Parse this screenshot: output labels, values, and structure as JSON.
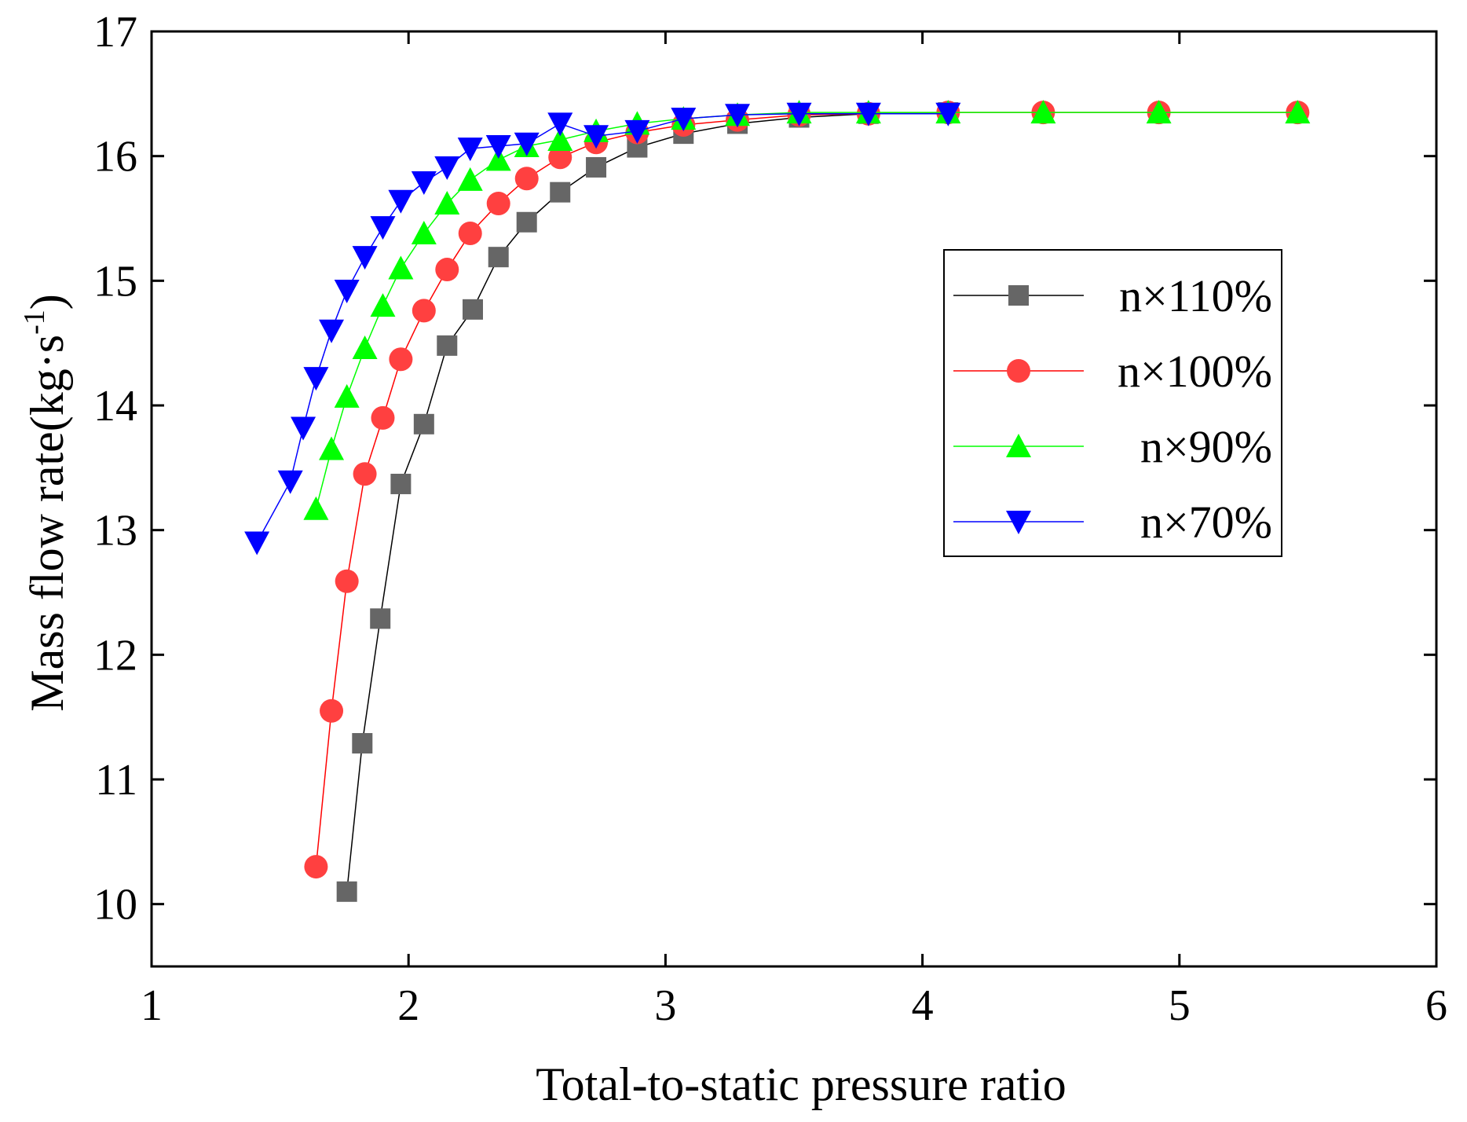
{
  "chart_data": {
    "type": "line",
    "title": "",
    "xlabel": "Total-to-static pressure ratio",
    "ylabel_main": "Mass flow rate(kg·s",
    "ylabel_sup": "-1",
    "ylabel_close": ")",
    "xlim": [
      1,
      6
    ],
    "ylim": [
      9.5,
      17
    ],
    "xticks": [
      1,
      2,
      3,
      4,
      5,
      6
    ],
    "xtick_labels": [
      "1",
      "2",
      "3",
      "4",
      "5",
      "6"
    ],
    "yticks": [
      10,
      11,
      12,
      13,
      14,
      15,
      16,
      17
    ],
    "ytick_labels": [
      "10",
      "11",
      "12",
      "13",
      "14",
      "15",
      "16",
      "17"
    ],
    "grid": false,
    "legend_position": "right-upper",
    "series": [
      {
        "name": "n×110%",
        "line_color": "#000000",
        "marker_color": "#666666",
        "marker": "square",
        "x": [
          1.76,
          1.82,
          1.89,
          1.97,
          2.06,
          2.15,
          2.25,
          2.35,
          2.46,
          2.59,
          2.73,
          2.89,
          3.07,
          3.28,
          3.52,
          3.79,
          4.1
        ],
        "y": [
          10.1,
          11.29,
          12.29,
          13.37,
          13.85,
          14.48,
          14.77,
          15.19,
          15.47,
          15.71,
          15.91,
          16.07,
          16.18,
          16.26,
          16.31,
          16.34,
          16.35
        ]
      },
      {
        "name": "n×100%",
        "line_color": "#ff0000",
        "marker_color": "#ff4040",
        "marker": "circle",
        "x": [
          1.64,
          1.7,
          1.76,
          1.83,
          1.9,
          1.97,
          2.06,
          2.15,
          2.24,
          2.35,
          2.46,
          2.59,
          2.73,
          2.89,
          3.07,
          3.28,
          3.52,
          3.79,
          4.1,
          4.47,
          4.92,
          5.46
        ],
        "y": [
          10.3,
          11.55,
          12.59,
          13.45,
          13.9,
          14.37,
          14.76,
          15.09,
          15.38,
          15.62,
          15.82,
          15.99,
          16.11,
          16.19,
          16.25,
          16.29,
          16.33,
          16.34,
          16.35,
          16.35,
          16.35,
          16.35
        ]
      },
      {
        "name": "n×90%",
        "line_color": "#00ff00",
        "marker_color": "#00ff00",
        "marker": "triangle-up",
        "x": [
          1.64,
          1.7,
          1.76,
          1.83,
          1.9,
          1.97,
          2.06,
          2.15,
          2.24,
          2.35,
          2.46,
          2.59,
          2.73,
          2.89,
          3.07,
          3.28,
          3.52,
          3.79,
          4.1,
          4.47,
          4.92,
          5.46
        ],
        "y": [
          13.17,
          13.65,
          14.07,
          14.46,
          14.8,
          15.1,
          15.38,
          15.62,
          15.81,
          15.97,
          16.08,
          16.13,
          16.2,
          16.26,
          16.3,
          16.33,
          16.35,
          16.35,
          16.35,
          16.35,
          16.35,
          16.35
        ]
      },
      {
        "name": "n×70%",
        "line_color": "#0000ff",
        "marker_color": "#0000ff",
        "marker": "triangle-down",
        "x": [
          1.41,
          1.54,
          1.59,
          1.64,
          1.7,
          1.76,
          1.83,
          1.9,
          1.97,
          2.06,
          2.15,
          2.24,
          2.35,
          2.46,
          2.59,
          2.73,
          2.89,
          3.07,
          3.28,
          3.52,
          3.79,
          4.1
        ],
        "y": [
          12.9,
          13.39,
          13.82,
          14.22,
          14.6,
          14.92,
          15.19,
          15.43,
          15.64,
          15.79,
          15.91,
          16.06,
          16.08,
          16.1,
          16.26,
          16.16,
          16.2,
          16.3,
          16.33,
          16.34,
          16.34,
          16.34
        ]
      }
    ]
  }
}
